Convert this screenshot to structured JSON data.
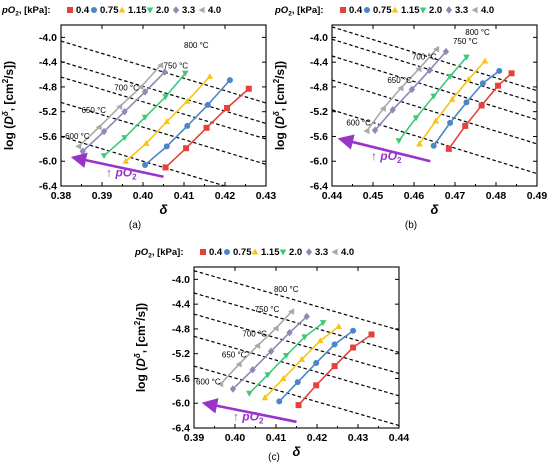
{
  "figure": {
    "legend_title_main": "pO",
    "legend_title_sub": "2",
    "legend_title_unit": ", [kPa]:",
    "ylabel": {
      "main": "log (",
      "D": "D",
      "sup": "δ",
      "rest": ", [cm",
      "sq": "2",
      "end": "/s])"
    },
    "xlabel": "δ",
    "arrow_label": {
      "prefix": "↑ ",
      "main": "pO",
      "sub": "2"
    },
    "series_colors": [
      "#e8413b",
      "#4a86c8",
      "#f5c518",
      "#3ec97a",
      "#8e89b5",
      "#a9a9a9"
    ],
    "arrow_color": "#9a34c9",
    "isotherm_color": "#000000"
  },
  "chart_data": [
    {
      "type": "line",
      "panel_label": "(a)",
      "xlim": [
        0.38,
        0.43
      ],
      "ylim": [
        -6.4,
        -3.8
      ],
      "xticks": [
        "0.38",
        "0.39",
        "0.40",
        "0.41",
        "0.42",
        "0.43"
      ],
      "yticks": [
        "-4.0",
        "-4.4",
        "-4.8",
        "-5.2",
        "-5.6",
        "-6.0",
        "-6.4"
      ],
      "legend": [
        "0.4",
        "0.75",
        "1.15",
        "2.0",
        "3.3",
        "4.0"
      ],
      "series": [
        {
          "name": "0.4",
          "x": [
            0.4055,
            0.4105,
            0.4155,
            0.4205,
            0.4258
          ],
          "y": [
            -6.1,
            -5.79,
            -5.46,
            -5.14,
            -4.83
          ]
        },
        {
          "name": "0.75",
          "x": [
            0.4005,
            0.4058,
            0.4108,
            0.4158,
            0.4212
          ],
          "y": [
            -6.06,
            -5.76,
            -5.43,
            -5.09,
            -4.69
          ]
        },
        {
          "name": "1.15",
          "x": [
            0.3958,
            0.4008,
            0.4058,
            0.4108,
            0.4163
          ],
          "y": [
            -6.0,
            -5.71,
            -5.36,
            -5.03,
            -4.63
          ]
        },
        {
          "name": "2.0",
          "x": [
            0.3905,
            0.3955,
            0.4005,
            0.4055,
            0.4103
          ],
          "y": [
            -5.91,
            -5.62,
            -5.29,
            -4.96,
            -4.58
          ]
        },
        {
          "name": "3.3",
          "x": [
            0.3853,
            0.3905,
            0.3955,
            0.4005,
            0.4053
          ],
          "y": [
            -5.84,
            -5.52,
            -5.2,
            -4.88,
            -4.56
          ]
        },
        {
          "name": "4.0",
          "x": [
            0.3843,
            0.3893,
            0.3943,
            0.3995,
            0.4043
          ],
          "y": [
            -5.76,
            -5.45,
            -5.12,
            -4.8,
            -4.45
          ]
        }
      ],
      "isotherms": [
        {
          "label": "800 °C",
          "x": [
            0.38,
            0.43
          ],
          "y": [
            -4.06,
            -5.06
          ]
        },
        {
          "label": "750 °C",
          "x": [
            0.38,
            0.43
          ],
          "y": [
            -4.39,
            -5.39
          ]
        },
        {
          "label": "700 °C",
          "x": [
            0.38,
            0.43
          ],
          "y": [
            -4.64,
            -5.64
          ]
        },
        {
          "label": "650 °C",
          "x": [
            0.38,
            0.43
          ],
          "y": [
            -5.05,
            -6.05
          ]
        },
        {
          "label": "600 °C",
          "x": [
            0.38,
            0.43
          ],
          "y": [
            -5.6,
            -6.6
          ]
        }
      ],
      "isotherm_label_pos": [
        [
          0.41,
          -4.17
        ],
        [
          0.405,
          -4.5
        ],
        [
          0.393,
          -4.86
        ],
        [
          0.385,
          -5.22
        ],
        [
          0.381,
          -5.64
        ]
      ],
      "arrow": {
        "from": [
          0.405,
          -6.25
        ],
        "to": [
          0.383,
          -5.94
        ]
      },
      "arrow_label_pos": [
        0.391,
        -6.25
      ]
    },
    {
      "type": "line",
      "panel_label": "(b)",
      "xlim": [
        0.44,
        0.49
      ],
      "ylim": [
        -6.4,
        -3.8
      ],
      "xticks": [
        "0.44",
        "0.45",
        "0.46",
        "0.47",
        "0.48",
        "0.49"
      ],
      "yticks": [
        "-4.0",
        "-4.4",
        "-4.8",
        "-5.2",
        "-5.6",
        "-6.0",
        "-6.4"
      ],
      "legend": [
        "0.4",
        "0.75",
        "1.15",
        "2.0",
        "3.3",
        "4.0"
      ],
      "series": [
        {
          "name": "0.4",
          "x": [
            0.4685,
            0.4725,
            0.4765,
            0.4805,
            0.4838
          ],
          "y": [
            -5.8,
            -5.43,
            -5.1,
            -4.78,
            -4.58
          ]
        },
        {
          "name": "0.75",
          "x": [
            0.4648,
            0.4688,
            0.4728,
            0.4768,
            0.4808
          ],
          "y": [
            -5.75,
            -5.38,
            -5.05,
            -4.74,
            -4.54
          ]
        },
        {
          "name": "1.15",
          "x": [
            0.4613,
            0.4653,
            0.4693,
            0.4733,
            0.4773
          ],
          "y": [
            -5.72,
            -5.35,
            -5.0,
            -4.68,
            -4.38
          ]
        },
        {
          "name": "2.0",
          "x": [
            0.4563,
            0.4605,
            0.4648,
            0.4688,
            0.4728
          ],
          "y": [
            -5.67,
            -5.3,
            -4.95,
            -4.63,
            -4.32
          ]
        },
        {
          "name": "3.3",
          "x": [
            0.4505,
            0.4548,
            0.4595,
            0.4638,
            0.4678
          ],
          "y": [
            -5.5,
            -5.17,
            -4.84,
            -4.53,
            -4.23
          ]
        },
        {
          "name": "4.0",
          "x": [
            0.4485,
            0.4525,
            0.4568,
            0.4612,
            0.4655
          ],
          "y": [
            -5.51,
            -5.15,
            -4.82,
            -4.51,
            -4.19
          ]
        }
      ],
      "isotherms": [
        {
          "label": "800 °C",
          "x": [
            0.44,
            0.49
          ],
          "y": [
            -3.83,
            -4.86
          ]
        },
        {
          "label": "750 °C",
          "x": [
            0.44,
            0.49
          ],
          "y": [
            -4.03,
            -5.06
          ]
        },
        {
          "label": "700 °C",
          "x": [
            0.44,
            0.49
          ],
          "y": [
            -4.3,
            -5.33
          ]
        },
        {
          "label": "650 °C",
          "x": [
            0.44,
            0.49
          ],
          "y": [
            -4.69,
            -5.72
          ]
        },
        {
          "label": "600 °C",
          "x": [
            0.44,
            0.49
          ],
          "y": [
            -5.17,
            -6.2
          ]
        }
      ],
      "isotherm_label_pos": [
        [
          0.4725,
          -3.96
        ],
        [
          0.4695,
          -4.11
        ],
        [
          0.4595,
          -4.36
        ],
        [
          0.4535,
          -4.74
        ],
        [
          0.4435,
          -5.42
        ]
      ],
      "arrow": {
        "from": [
          0.464,
          -6.0
        ],
        "to": [
          0.442,
          -5.64
        ]
      },
      "arrow_label_pos": [
        0.4495,
        -5.98
      ]
    },
    {
      "type": "line",
      "panel_label": "(c)",
      "xlim": [
        0.39,
        0.44
      ],
      "ylim": [
        -6.4,
        -3.8
      ],
      "xticks": [
        "0.39",
        "0.40",
        "0.41",
        "0.42",
        "0.43",
        "0.44"
      ],
      "yticks": [
        "-4.0",
        "-4.4",
        "-4.8",
        "-5.2",
        "-5.6",
        "-6.0",
        "-6.4"
      ],
      "legend": [
        "0.4",
        "0.75",
        "1.15",
        "2.0",
        "3.3",
        "4.0"
      ],
      "series": [
        {
          "name": "0.4",
          "x": [
            0.4155,
            0.4198,
            0.4243,
            0.4288,
            0.4333
          ],
          "y": [
            -6.03,
            -5.71,
            -5.4,
            -5.1,
            -4.89
          ]
        },
        {
          "name": "0.75",
          "x": [
            0.4108,
            0.4153,
            0.4198,
            0.4243,
            0.4288
          ],
          "y": [
            -5.97,
            -5.66,
            -5.35,
            -5.05,
            -4.83
          ]
        },
        {
          "name": "1.15",
          "x": [
            0.4073,
            0.4118,
            0.4163,
            0.4208,
            0.4253
          ],
          "y": [
            -5.91,
            -5.6,
            -5.29,
            -4.99,
            -4.76
          ]
        },
        {
          "name": "2.0",
          "x": [
            0.4035,
            0.408,
            0.4125,
            0.417,
            0.4215
          ],
          "y": [
            -5.84,
            -5.54,
            -5.23,
            -4.93,
            -4.7
          ]
        },
        {
          "name": "3.3",
          "x": [
            0.3995,
            0.4043,
            0.4088,
            0.4133,
            0.4175
          ],
          "y": [
            -5.77,
            -5.46,
            -5.16,
            -4.86,
            -4.6
          ]
        },
        {
          "name": "4.0",
          "x": [
            0.3965,
            0.401,
            0.4055,
            0.41,
            0.4138
          ],
          "y": [
            -5.69,
            -5.37,
            -5.07,
            -4.79,
            -4.52
          ]
        }
      ],
      "isotherms": [
        {
          "label": "800 °C",
          "x": [
            0.39,
            0.44
          ],
          "y": [
            -3.86,
            -4.82
          ]
        },
        {
          "label": "750 °C",
          "x": [
            0.39,
            0.44
          ],
          "y": [
            -4.22,
            -5.18
          ]
        },
        {
          "label": "700 °C",
          "x": [
            0.39,
            0.44
          ],
          "y": [
            -4.56,
            -5.52
          ]
        },
        {
          "label": "650 °C",
          "x": [
            0.39,
            0.44
          ],
          "y": [
            -4.92,
            -5.88
          ]
        },
        {
          "label": "600 °C",
          "x": [
            0.39,
            0.44
          ],
          "y": [
            -5.4,
            -6.36
          ]
        }
      ],
      "isotherm_label_pos": [
        [
          0.4095,
          -4.2
        ],
        [
          0.4048,
          -4.53
        ],
        [
          0.4018,
          -4.92
        ],
        [
          0.3968,
          -5.26
        ],
        [
          0.3905,
          -5.7
        ]
      ],
      "arrow": {
        "from": [
          0.415,
          -6.3
        ],
        "to": [
          0.3925,
          -6.0
        ]
      },
      "arrow_label_pos": [
        0.3995,
        -6.28
      ]
    }
  ]
}
